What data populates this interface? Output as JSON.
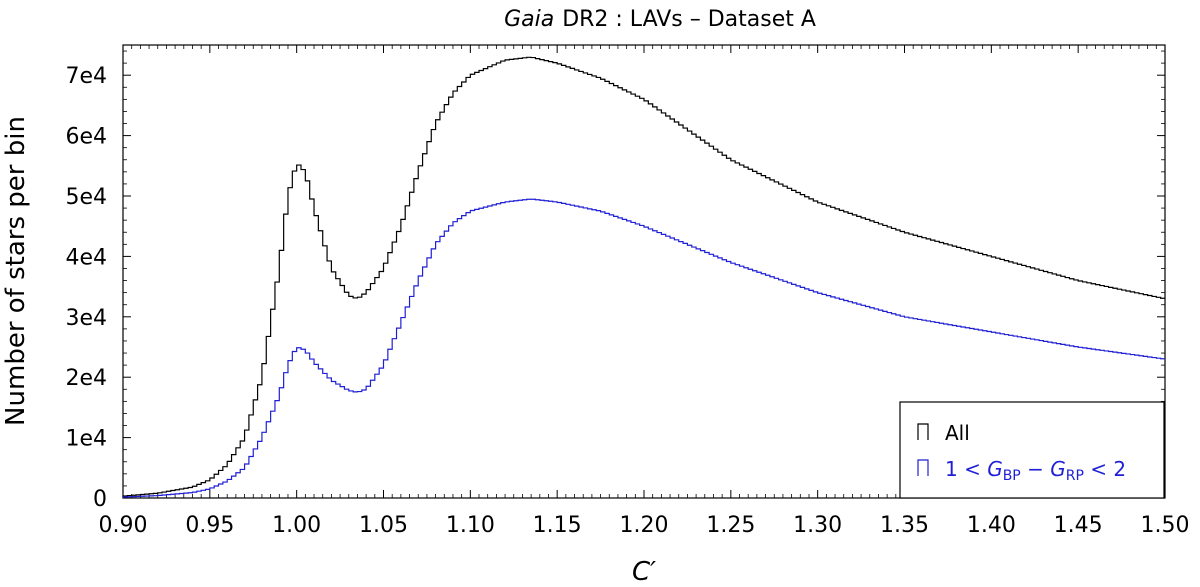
{
  "chart_data": {
    "type": "line",
    "style": "step histogram",
    "title": {
      "italic_part": "Gaia",
      "rest": "DR2 : LAVs  –  Dataset A"
    },
    "xlabel": "C′",
    "ylabel": "Number of stars per bin",
    "xlim": [
      0.9,
      1.5
    ],
    "ylim": [
      0,
      75000
    ],
    "x_ticks": [
      0.9,
      0.95,
      1.0,
      1.05,
      1.1,
      1.15,
      1.2,
      1.25,
      1.3,
      1.35,
      1.4,
      1.45,
      1.5
    ],
    "x_tick_labels": [
      "0.90",
      "0.95",
      "1.00",
      "1.05",
      "1.10",
      "1.15",
      "1.20",
      "1.25",
      "1.30",
      "1.35",
      "1.40",
      "1.45",
      "1.50"
    ],
    "y_ticks": [
      0,
      10000,
      20000,
      30000,
      40000,
      50000,
      60000,
      70000
    ],
    "y_tick_labels": [
      "0",
      "1e4",
      "2e4",
      "3e4",
      "4e4",
      "5e4",
      "6e4",
      "7e4"
    ],
    "grid": false,
    "legend_position": "bottom-right",
    "legend": {
      "all": "All",
      "subset_prefix": "1 < ",
      "subset_g1": "G",
      "subset_sub1": "BP",
      "subset_minus": " − ",
      "subset_g2": "G",
      "subset_sub2": "RP",
      "subset_suffix": " < 2"
    },
    "series": [
      {
        "name": "All",
        "color": "#000000",
        "x": [
          0.9,
          0.92,
          0.94,
          0.95,
          0.96,
          0.97,
          0.98,
          0.99,
          0.995,
          1.0,
          1.005,
          1.01,
          1.02,
          1.03,
          1.035,
          1.04,
          1.05,
          1.06,
          1.07,
          1.08,
          1.09,
          1.1,
          1.12,
          1.135,
          1.15,
          1.175,
          1.2,
          1.25,
          1.3,
          1.35,
          1.4,
          1.45,
          1.5
        ],
        "values": [
          300,
          800,
          1800,
          3000,
          5500,
          10000,
          20000,
          38000,
          50000,
          55500,
          54000,
          48000,
          38000,
          33500,
          33000,
          34000,
          38000,
          45000,
          54000,
          62000,
          67000,
          70000,
          72500,
          73000,
          72000,
          69500,
          66000,
          56000,
          49000,
          44000,
          40000,
          36000,
          33000
        ]
      },
      {
        "name": "1 < GBP − GRP < 2",
        "color": "#1f1fd6",
        "x": [
          0.9,
          0.92,
          0.94,
          0.95,
          0.96,
          0.97,
          0.98,
          0.99,
          0.995,
          1.0,
          1.005,
          1.01,
          1.02,
          1.03,
          1.035,
          1.04,
          1.05,
          1.06,
          1.07,
          1.08,
          1.09,
          1.1,
          1.12,
          1.135,
          1.15,
          1.175,
          1.2,
          1.25,
          1.3,
          1.35,
          1.4,
          1.45,
          1.5
        ],
        "values": [
          150,
          400,
          900,
          1500,
          2800,
          5000,
          10000,
          17000,
          22000,
          25000,
          24500,
          22500,
          19500,
          17800,
          17500,
          18000,
          22000,
          29000,
          36000,
          42000,
          45500,
          47500,
          49000,
          49500,
          49000,
          47500,
          45000,
          39000,
          34000,
          30000,
          27500,
          25000,
          23000
        ]
      }
    ]
  }
}
